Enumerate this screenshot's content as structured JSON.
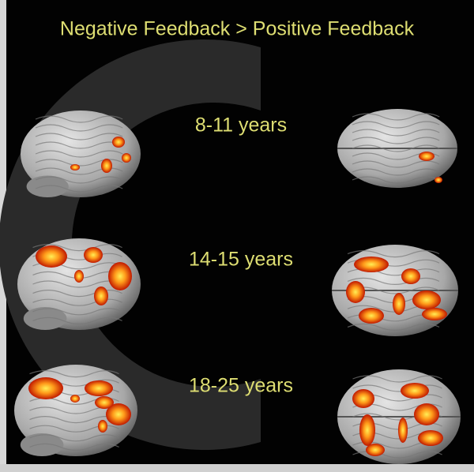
{
  "header": {
    "title": "Negative Feedback > Positive Feedback"
  },
  "rows": [
    {
      "label": "8-11 years"
    },
    {
      "label": "14-15 years"
    },
    {
      "label": "18-25 years"
    }
  ]
}
